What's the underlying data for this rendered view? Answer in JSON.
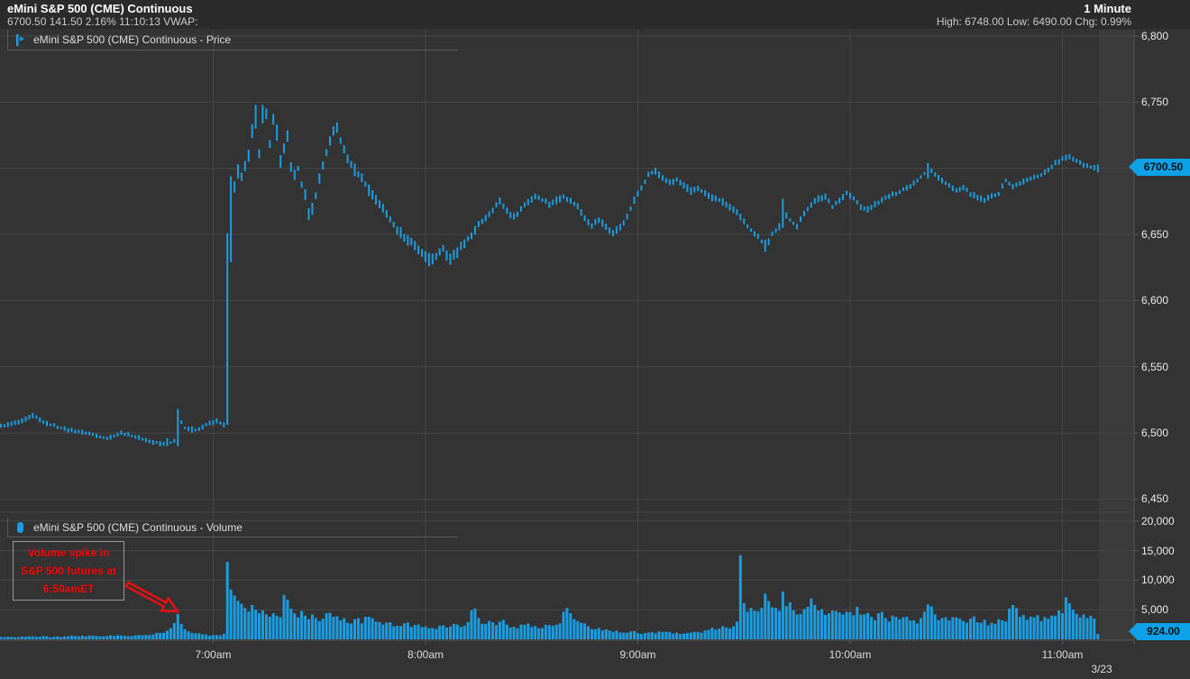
{
  "header": {
    "title": "eMini S&P 500 (CME) Continuous",
    "quote_line": "6700.50 141.50 2.16% 11:10:13 VWAP:",
    "timeframe": "1 Minute",
    "stats_line": "High: 6748.00 Low: 6490.00 Chg: 0.99%"
  },
  "panels": {
    "price": {
      "legend": "eMini S&P 500 (CME) Continuous - Price",
      "badge": "6700.50",
      "icon": "price-bars-icon"
    },
    "volume": {
      "legend": "eMini S&P 500 (CME) Continuous - Volume",
      "badge": "924.00",
      "icon": "volume-bar-icon"
    }
  },
  "annotation": {
    "lines": [
      "Volume spike in",
      "S&P 500 futures at",
      "6:50amET"
    ]
  },
  "axes": {
    "price_ticks": [
      {
        "label": "6,800",
        "value": 6800
      },
      {
        "label": "6,750",
        "value": 6750
      },
      {
        "label": "6,650",
        "value": 6650
      },
      {
        "label": "6,600",
        "value": 6600
      },
      {
        "label": "6,550",
        "value": 6550
      },
      {
        "label": "6,500",
        "value": 6500
      },
      {
        "label": "6,450",
        "value": 6450
      }
    ],
    "price_grid_values": [
      6800,
      6750,
      6700,
      6650,
      6600,
      6550,
      6500,
      6450
    ],
    "volume_ticks": [
      {
        "label": "20,000",
        "value": 20000
      },
      {
        "label": "15,000",
        "value": 15000
      },
      {
        "label": "10,000",
        "value": 10000
      },
      {
        "label": "5,000",
        "value": 5000
      }
    ],
    "time_ticks": [
      {
        "label": "7:00am",
        "t": 60
      },
      {
        "label": "8:00am",
        "t": 120
      },
      {
        "label": "9:00am",
        "t": 180
      },
      {
        "label": "10:00am",
        "t": 240
      },
      {
        "label": "11:00am",
        "t": 300
      }
    ],
    "date_label": "3/23"
  },
  "colors": {
    "background": "#333333",
    "header_background": "#2b2b2b",
    "grid": "#474747",
    "axis_line": "#5a5a5a",
    "bar_blue": "#1b9de2",
    "badge_blue": "#0da2e7",
    "annotation_red": "#ee0f0f",
    "text_light": "#dedede",
    "highlight_column": "#3b3b3b"
  },
  "chart_data": {
    "type": "bar",
    "subtype": "ohlc_price_with_volume",
    "instrument": "eMini S&P 500 (CME) Continuous",
    "timeframe": "1 Minute",
    "session_date": "3/23",
    "x_unit": "minutes_after_6:00am_ET",
    "x_range": [
      0,
      310
    ],
    "price_ylim": [
      6450,
      6800
    ],
    "volume_ylim": [
      0,
      20000
    ],
    "last_price": 6700.5,
    "last_volume": 924,
    "high": 6748.0,
    "low": 6490.0,
    "change_pct": 0.99,
    "price_keyframes": [
      [
        0,
        6505
      ],
      [
        6,
        6509
      ],
      [
        9,
        6513
      ],
      [
        13,
        6507
      ],
      [
        18,
        6503
      ],
      [
        24,
        6500
      ],
      [
        30,
        6496
      ],
      [
        34,
        6500
      ],
      [
        38,
        6497
      ],
      [
        43,
        6493
      ],
      [
        47,
        6491
      ],
      [
        49,
        6494
      ],
      [
        50,
        6512
      ],
      [
        52,
        6504
      ],
      [
        55,
        6502
      ],
      [
        58,
        6506
      ],
      [
        61,
        6509
      ],
      [
        63,
        6506
      ],
      [
        64,
        6648
      ],
      [
        65,
        6690
      ],
      [
        66,
        6684
      ],
      [
        67,
        6698
      ],
      [
        68,
        6694
      ],
      [
        70,
        6708
      ],
      [
        71,
        6728
      ],
      [
        72,
        6746
      ],
      [
        73,
        6712
      ],
      [
        74,
        6744
      ],
      [
        75,
        6740
      ],
      [
        76,
        6718
      ],
      [
        77,
        6736
      ],
      [
        78,
        6727
      ],
      [
        79,
        6704
      ],
      [
        80,
        6716
      ],
      [
        81,
        6724
      ],
      [
        82,
        6700
      ],
      [
        83,
        6694
      ],
      [
        84,
        6700
      ],
      [
        85,
        6688
      ],
      [
        86,
        6680
      ],
      [
        87,
        6665
      ],
      [
        88,
        6670
      ],
      [
        89,
        6680
      ],
      [
        90,
        6692
      ],
      [
        91,
        6702
      ],
      [
        92,
        6712
      ],
      [
        93,
        6720
      ],
      [
        94,
        6727
      ],
      [
        95,
        6731
      ],
      [
        96,
        6721
      ],
      [
        97,
        6713
      ],
      [
        98,
        6707
      ],
      [
        100,
        6699
      ],
      [
        102,
        6692
      ],
      [
        104,
        6684
      ],
      [
        106,
        6677
      ],
      [
        108,
        6669
      ],
      [
        110,
        6661
      ],
      [
        112,
        6654
      ],
      [
        114,
        6648
      ],
      [
        116,
        6644
      ],
      [
        118,
        6639
      ],
      [
        120,
        6633
      ],
      [
        121,
        6628
      ],
      [
        123,
        6634
      ],
      [
        125,
        6639
      ],
      [
        127,
        6631
      ],
      [
        129,
        6637
      ],
      [
        131,
        6643
      ],
      [
        133,
        6650
      ],
      [
        135,
        6657
      ],
      [
        137,
        6663
      ],
      [
        139,
        6669
      ],
      [
        141,
        6675
      ],
      [
        143,
        6668
      ],
      [
        145,
        6663
      ],
      [
        147,
        6669
      ],
      [
        149,
        6675
      ],
      [
        151,
        6679
      ],
      [
        153,
        6676
      ],
      [
        155,
        6673
      ],
      [
        157,
        6676
      ],
      [
        159,
        6679
      ],
      [
        161,
        6675
      ],
      [
        163,
        6671
      ],
      [
        165,
        6663
      ],
      [
        167,
        6657
      ],
      [
        169,
        6661
      ],
      [
        171,
        6656
      ],
      [
        173,
        6651
      ],
      [
        175,
        6656
      ],
      [
        177,
        6663
      ],
      [
        179,
        6676
      ],
      [
        181,
        6686
      ],
      [
        183,
        6695
      ],
      [
        185,
        6698
      ],
      [
        187,
        6693
      ],
      [
        189,
        6689
      ],
      [
        191,
        6691
      ],
      [
        193,
        6687
      ],
      [
        195,
        6683
      ],
      [
        197,
        6685
      ],
      [
        199,
        6681
      ],
      [
        201,
        6678
      ],
      [
        203,
        6676
      ],
      [
        205,
        6673
      ],
      [
        207,
        6669
      ],
      [
        209,
        6663
      ],
      [
        211,
        6656
      ],
      [
        213,
        6651
      ],
      [
        215,
        6645
      ],
      [
        216,
        6640
      ],
      [
        218,
        6650
      ],
      [
        220,
        6656
      ],
      [
        221,
        6668
      ],
      [
        223,
        6661
      ],
      [
        225,
        6656
      ],
      [
        227,
        6666
      ],
      [
        229,
        6673
      ],
      [
        231,
        6677
      ],
      [
        233,
        6679
      ],
      [
        235,
        6671
      ],
      [
        237,
        6676
      ],
      [
        239,
        6681
      ],
      [
        241,
        6677
      ],
      [
        243,
        6671
      ],
      [
        245,
        6669
      ],
      [
        247,
        6673
      ],
      [
        249,
        6676
      ],
      [
        251,
        6679
      ],
      [
        253,
        6681
      ],
      [
        255,
        6684
      ],
      [
        257,
        6687
      ],
      [
        259,
        6691
      ],
      [
        261,
        6696
      ],
      [
        262,
        6701
      ],
      [
        264,
        6695
      ],
      [
        266,
        6691
      ],
      [
        268,
        6687
      ],
      [
        270,
        6683
      ],
      [
        272,
        6685
      ],
      [
        274,
        6681
      ],
      [
        276,
        6678
      ],
      [
        278,
        6676
      ],
      [
        280,
        6679
      ],
      [
        282,
        6681
      ],
      [
        284,
        6691
      ],
      [
        286,
        6686
      ],
      [
        288,
        6689
      ],
      [
        290,
        6691
      ],
      [
        292,
        6693
      ],
      [
        294,
        6695
      ],
      [
        296,
        6699
      ],
      [
        298,
        6704
      ],
      [
        300,
        6707
      ],
      [
        302,
        6709
      ],
      [
        304,
        6706
      ],
      [
        306,
        6703
      ],
      [
        308,
        6701
      ],
      [
        310,
        6700.5
      ]
    ],
    "special_bars": {
      "47": {
        "lo": 6490,
        "hi": 6496
      },
      "50": {
        "lo": 6490,
        "hi": 6518
      },
      "64": {
        "lo": 6506,
        "hi": 6651
      },
      "65": {
        "lo": 6629,
        "hi": 6694
      },
      "72": {
        "lo": 6730,
        "hi": 6748
      },
      "74": {
        "lo": 6734,
        "hi": 6748
      },
      "121": {
        "lo": 6626,
        "hi": 6636
      },
      "216": {
        "lo": 6637,
        "hi": 6646
      },
      "221": {
        "lo": 6655,
        "hi": 6677
      },
      "262": {
        "lo": 6692,
        "hi": 6704
      },
      "310": {
        "lo": 6697,
        "hi": 6703
      }
    },
    "range_amplitude_regions": [
      [
        0,
        49,
        2.2
      ],
      [
        50,
        63,
        2.4
      ],
      [
        64,
        79,
        6.5
      ],
      [
        80,
        130,
        5.0
      ],
      [
        131,
        175,
        3.4
      ],
      [
        176,
        240,
        3.0
      ],
      [
        241,
        310,
        2.6
      ]
    ],
    "volume_keyframes": [
      [
        0,
        400
      ],
      [
        8,
        480
      ],
      [
        15,
        430
      ],
      [
        22,
        520
      ],
      [
        30,
        560
      ],
      [
        38,
        680
      ],
      [
        43,
        820
      ],
      [
        46,
        1100
      ],
      [
        48,
        1900
      ],
      [
        50,
        4300
      ],
      [
        51,
        2600
      ],
      [
        52,
        1700
      ],
      [
        54,
        1100
      ],
      [
        57,
        850
      ],
      [
        60,
        700
      ],
      [
        62,
        650
      ],
      [
        63,
        950
      ],
      [
        64,
        13100
      ],
      [
        65,
        8400
      ],
      [
        66,
        7400
      ],
      [
        67,
        6500
      ],
      [
        68,
        6000
      ],
      [
        69,
        5300
      ],
      [
        70,
        4700
      ],
      [
        71,
        5800
      ],
      [
        72,
        5000
      ],
      [
        73,
        4400
      ],
      [
        74,
        4900
      ],
      [
        75,
        4200
      ],
      [
        76,
        3800
      ],
      [
        77,
        4400
      ],
      [
        78,
        4000
      ],
      [
        79,
        3700
      ],
      [
        80,
        7500
      ],
      [
        81,
        6700
      ],
      [
        82,
        5200
      ],
      [
        83,
        4400
      ],
      [
        84,
        3700
      ],
      [
        85,
        4800
      ],
      [
        86,
        4000
      ],
      [
        87,
        3400
      ],
      [
        88,
        4200
      ],
      [
        89,
        3600
      ],
      [
        90,
        3100
      ],
      [
        92,
        4400
      ],
      [
        94,
        3800
      ],
      [
        96,
        3200
      ],
      [
        98,
        2800
      ],
      [
        100,
        3400
      ],
      [
        102,
        2700
      ],
      [
        104,
        3800
      ],
      [
        106,
        3000
      ],
      [
        108,
        2500
      ],
      [
        110,
        2900
      ],
      [
        112,
        2300
      ],
      [
        114,
        2700
      ],
      [
        116,
        2100
      ],
      [
        118,
        2500
      ],
      [
        120,
        2200
      ],
      [
        122,
        1900
      ],
      [
        124,
        2300
      ],
      [
        126,
        2000
      ],
      [
        128,
        2600
      ],
      [
        130,
        2100
      ],
      [
        132,
        2900
      ],
      [
        133,
        4900
      ],
      [
        134,
        5200
      ],
      [
        135,
        3600
      ],
      [
        137,
        2600
      ],
      [
        139,
        2900
      ],
      [
        141,
        3000
      ],
      [
        143,
        2500
      ],
      [
        145,
        2100
      ],
      [
        147,
        2500
      ],
      [
        150,
        2100
      ],
      [
        153,
        1900
      ],
      [
        156,
        2300
      ],
      [
        158,
        2700
      ],
      [
        160,
        5300
      ],
      [
        161,
        4400
      ],
      [
        162,
        3400
      ],
      [
        164,
        2800
      ],
      [
        166,
        2200
      ],
      [
        168,
        1700
      ],
      [
        170,
        1500
      ],
      [
        173,
        1250
      ],
      [
        176,
        1150
      ],
      [
        179,
        1400
      ],
      [
        182,
        1050
      ],
      [
        185,
        1000
      ],
      [
        188,
        1300
      ],
      [
        191,
        1150
      ],
      [
        194,
        1050
      ],
      [
        197,
        1250
      ],
      [
        200,
        1600
      ],
      [
        203,
        1800
      ],
      [
        205,
        2000
      ],
      [
        207,
        2200
      ],
      [
        208,
        3000
      ],
      [
        209,
        14200
      ],
      [
        210,
        6100
      ],
      [
        212,
        5300
      ],
      [
        214,
        4700
      ],
      [
        216,
        7700
      ],
      [
        218,
        5400
      ],
      [
        220,
        4800
      ],
      [
        221,
        8100
      ],
      [
        222,
        5600
      ],
      [
        224,
        4900
      ],
      [
        226,
        4300
      ],
      [
        228,
        5500
      ],
      [
        229,
        6900
      ],
      [
        230,
        5800
      ],
      [
        232,
        5100
      ],
      [
        234,
        4400
      ],
      [
        236,
        4800
      ],
      [
        238,
        4200
      ],
      [
        240,
        4600
      ],
      [
        242,
        5500
      ],
      [
        244,
        4200
      ],
      [
        246,
        3800
      ],
      [
        248,
        4400
      ],
      [
        250,
        3600
      ],
      [
        252,
        4000
      ],
      [
        254,
        3400
      ],
      [
        256,
        3800
      ],
      [
        258,
        3200
      ],
      [
        260,
        3600
      ],
      [
        262,
        5900
      ],
      [
        264,
        4200
      ],
      [
        266,
        3600
      ],
      [
        268,
        3200
      ],
      [
        270,
        3700
      ],
      [
        272,
        3100
      ],
      [
        274,
        3500
      ],
      [
        276,
        2900
      ],
      [
        278,
        3300
      ],
      [
        280,
        2800
      ],
      [
        282,
        3400
      ],
      [
        284,
        3000
      ],
      [
        286,
        5800
      ],
      [
        288,
        3800
      ],
      [
        290,
        3300
      ],
      [
        292,
        3700
      ],
      [
        294,
        3100
      ],
      [
        296,
        3500
      ],
      [
        298,
        4000
      ],
      [
        300,
        4400
      ],
      [
        301,
        7100
      ],
      [
        302,
        6100
      ],
      [
        303,
        5000
      ],
      [
        304,
        4300
      ],
      [
        305,
        3700
      ],
      [
        306,
        4200
      ],
      [
        307,
        3600
      ],
      [
        308,
        4000
      ],
      [
        309,
        3500
      ],
      [
        310,
        924
      ]
    ],
    "annotation": {
      "text": "Volume spike in S&P 500 futures at 6:50amET",
      "points_to_minute": 50
    }
  }
}
